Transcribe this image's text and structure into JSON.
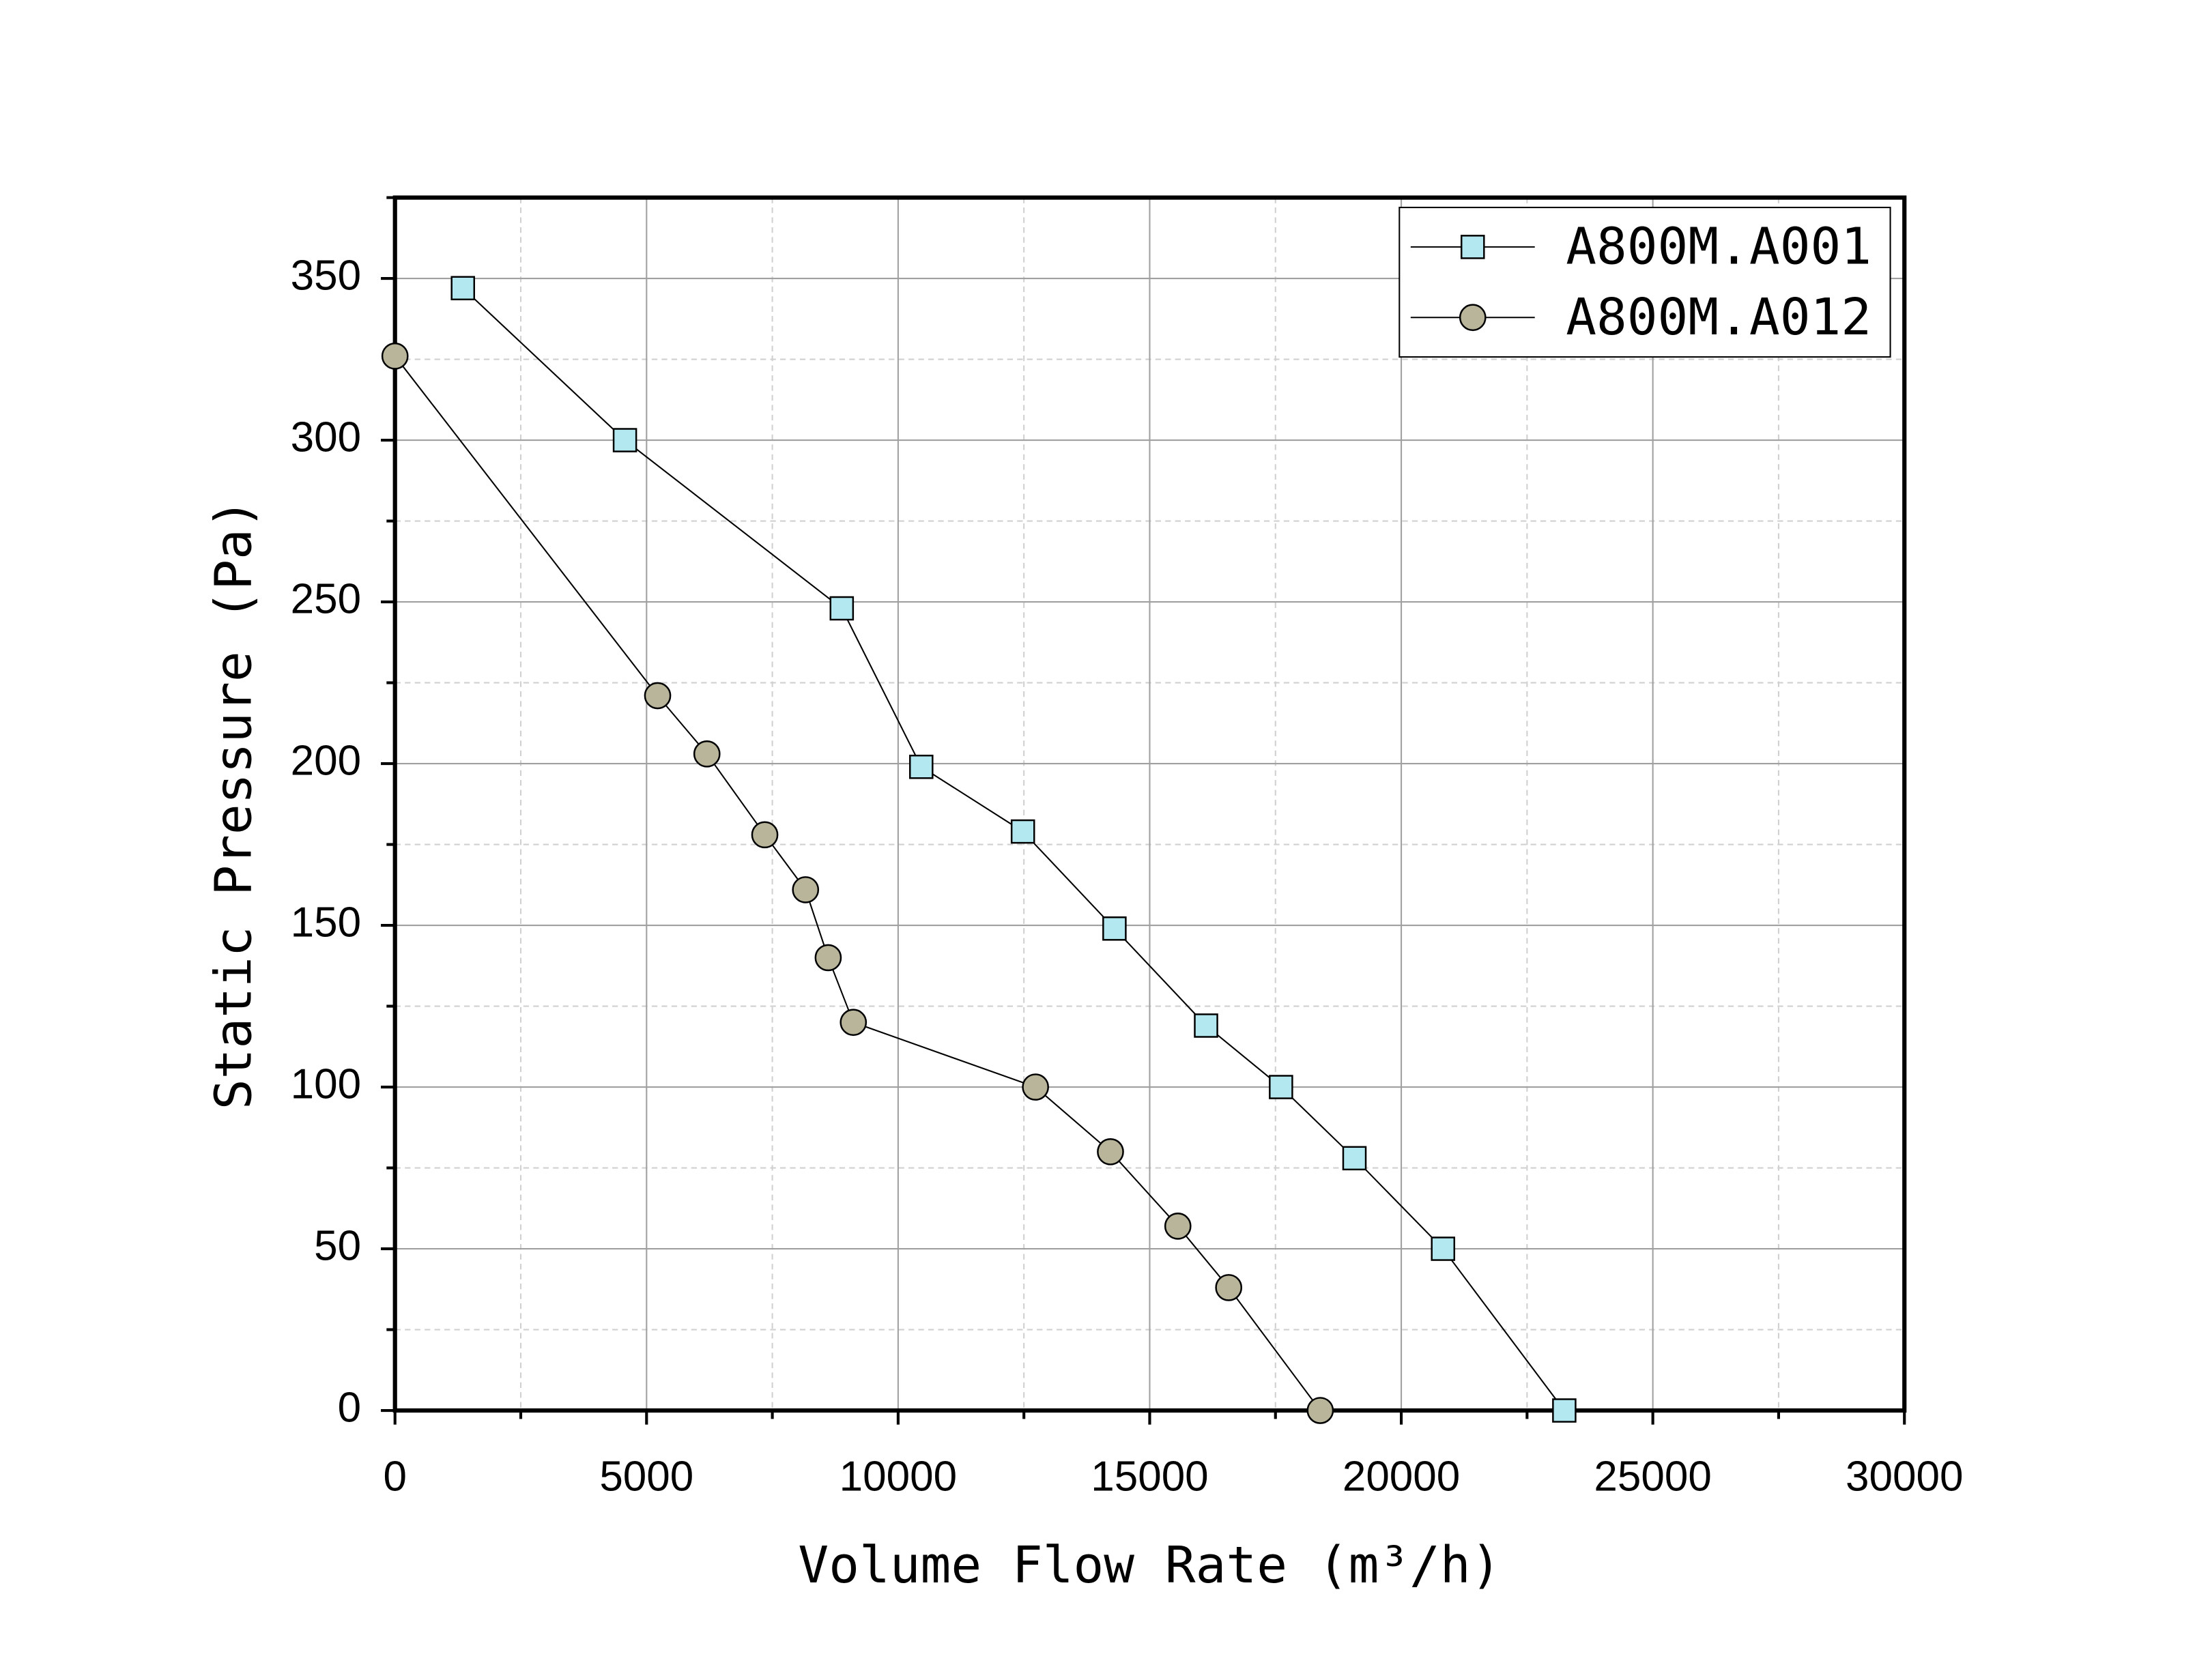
{
  "chart_data": {
    "type": "line",
    "x_label": "Volume Flow Rate (m³/h)",
    "y_label": "Static Pressure (Pa)",
    "xlim": [
      0,
      30000
    ],
    "xticks": [
      0,
      5000,
      10000,
      15000,
      20000,
      25000,
      30000
    ],
    "ylim": [
      0,
      375
    ],
    "yticks": [
      0,
      50,
      100,
      150,
      200,
      250,
      300,
      350
    ],
    "grid": true,
    "minor_grid": true,
    "legend": "upper right",
    "series": [
      {
        "name": "A800M.A001",
        "color": "#b3e8f0",
        "marker": "square",
        "x": [
          1350,
          4570,
          8880,
          10460,
          12480,
          14300,
          16120,
          17610,
          19070,
          20830,
          23240
        ],
        "values": [
          347,
          300,
          248,
          199,
          179,
          149,
          119,
          100,
          78,
          50,
          0
        ]
      },
      {
        "name": "A800M.A012",
        "color": "#b8b59a",
        "marker": "circle",
        "x": [
          0,
          5220,
          6200,
          7350,
          8160,
          8610,
          9110,
          12730,
          14220,
          15560,
          16570,
          18390
        ],
        "values": [
          326,
          221,
          203,
          178,
          161,
          140,
          120,
          100,
          80,
          57,
          38,
          0
        ]
      }
    ]
  }
}
